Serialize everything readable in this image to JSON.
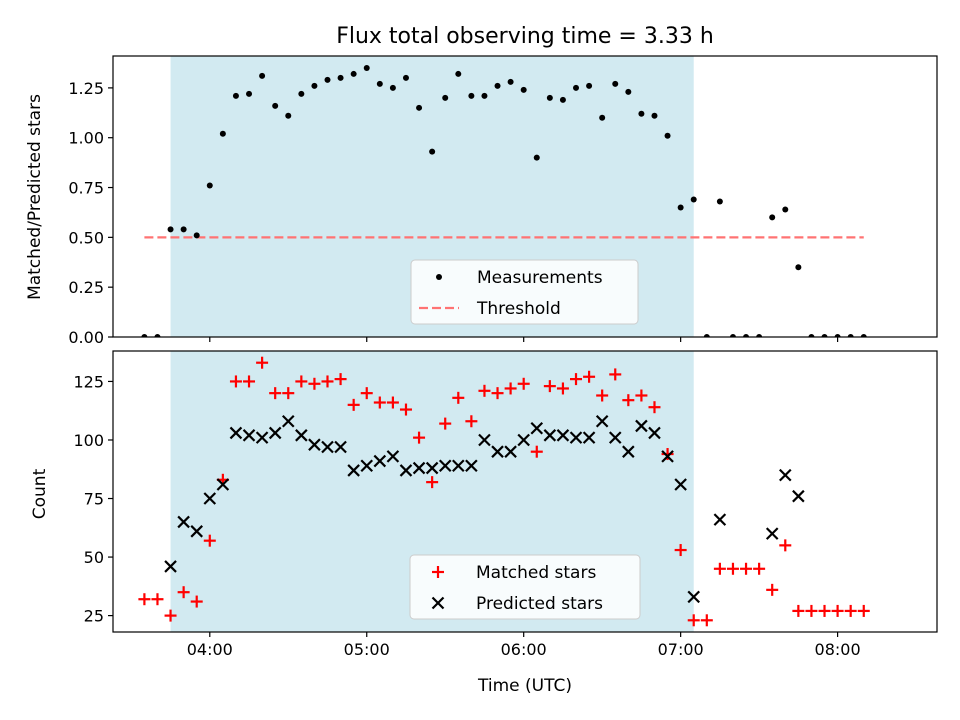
{
  "chart_data": [
    {
      "type": "scatter",
      "title": "Flux total observing time = 3.33 h",
      "xlabel": "",
      "ylabel": "Matched/Predicted stars",
      "ylim": [
        0,
        1.41
      ],
      "y_ticks": [
        "0.00",
        "0.25",
        "0.50",
        "0.75",
        "1.00",
        "1.25"
      ],
      "y_tick_values": [
        0,
        0.25,
        0.5,
        0.75,
        1.0,
        1.25
      ],
      "shaded_region": {
        "x_start": "03:45",
        "x_end": "07:05",
        "color": "#add8e6"
      },
      "threshold": {
        "name": "Threshold",
        "value": 0.5,
        "x_start": "03:35",
        "x_end": "08:10",
        "color": "#ff7373"
      },
      "legend": {
        "placement": "lower-center",
        "entries": [
          "Measurements",
          "Threshold"
        ]
      },
      "series": [
        {
          "name": "Measurements",
          "marker": "dot",
          "color": "#000000",
          "points": [
            [
              "03:35",
              0
            ],
            [
              "03:40",
              0
            ],
            [
              "03:45",
              0.54
            ],
            [
              "03:50",
              0.54
            ],
            [
              "03:55",
              0.51
            ],
            [
              "04:00",
              0.76
            ],
            [
              "04:05",
              1.02
            ],
            [
              "04:10",
              1.21
            ],
            [
              "04:15",
              1.22
            ],
            [
              "04:20",
              1.31
            ],
            [
              "04:25",
              1.16
            ],
            [
              "04:30",
              1.11
            ],
            [
              "04:35",
              1.22
            ],
            [
              "04:40",
              1.26
            ],
            [
              "04:45",
              1.29
            ],
            [
              "04:50",
              1.3
            ],
            [
              "04:55",
              1.32
            ],
            [
              "05:00",
              1.35
            ],
            [
              "05:05",
              1.27
            ],
            [
              "05:10",
              1.25
            ],
            [
              "05:15",
              1.3
            ],
            [
              "05:20",
              1.15
            ],
            [
              "05:25",
              0.93
            ],
            [
              "05:30",
              1.2
            ],
            [
              "05:35",
              1.32
            ],
            [
              "05:40",
              1.21
            ],
            [
              "05:45",
              1.21
            ],
            [
              "05:50",
              1.26
            ],
            [
              "05:55",
              1.28
            ],
            [
              "06:00",
              1.24
            ],
            [
              "06:05",
              0.9
            ],
            [
              "06:10",
              1.2
            ],
            [
              "06:15",
              1.19
            ],
            [
              "06:20",
              1.25
            ],
            [
              "06:25",
              1.26
            ],
            [
              "06:30",
              1.1
            ],
            [
              "06:35",
              1.27
            ],
            [
              "06:40",
              1.23
            ],
            [
              "06:45",
              1.12
            ],
            [
              "06:50",
              1.11
            ],
            [
              "06:55",
              1.01
            ],
            [
              "07:00",
              0.65
            ],
            [
              "07:05",
              0.69
            ],
            [
              "07:10",
              0
            ],
            [
              "07:15",
              0.68
            ],
            [
              "07:20",
              0
            ],
            [
              "07:25",
              0
            ],
            [
              "07:30",
              0
            ],
            [
              "07:35",
              0.6
            ],
            [
              "07:40",
              0.64
            ],
            [
              "07:45",
              0.35
            ],
            [
              "07:50",
              0
            ],
            [
              "07:55",
              0
            ],
            [
              "08:00",
              0
            ],
            [
              "08:05",
              0
            ],
            [
              "08:10",
              0
            ]
          ]
        }
      ]
    },
    {
      "type": "scatter",
      "title": "",
      "xlabel": "Time (UTC)",
      "ylabel": "Count",
      "ylim": [
        18,
        138
      ],
      "xlim": [
        "03:23",
        "08:38"
      ],
      "x_ticks": [
        "04:00",
        "05:00",
        "06:00",
        "07:00",
        "08:00"
      ],
      "y_ticks": [
        "25",
        "50",
        "75",
        "100",
        "125"
      ],
      "y_tick_values": [
        25,
        50,
        75,
        100,
        125
      ],
      "shaded_region": {
        "x_start": "03:45",
        "x_end": "07:05",
        "color": "#add8e6"
      },
      "legend": {
        "placement": "lower-center",
        "entries": [
          "Matched stars",
          "Predicted stars"
        ]
      },
      "series": [
        {
          "name": "Matched stars",
          "marker": "plus",
          "color": "#ff0000",
          "points": [
            [
              "03:35",
              32
            ],
            [
              "03:40",
              32
            ],
            [
              "03:45",
              25
            ],
            [
              "03:50",
              35
            ],
            [
              "03:55",
              31
            ],
            [
              "04:00",
              57
            ],
            [
              "04:05",
              83
            ],
            [
              "04:10",
              125
            ],
            [
              "04:15",
              125
            ],
            [
              "04:20",
              133
            ],
            [
              "04:25",
              120
            ],
            [
              "04:30",
              120
            ],
            [
              "04:35",
              125
            ],
            [
              "04:40",
              124
            ],
            [
              "04:45",
              125
            ],
            [
              "04:50",
              126
            ],
            [
              "04:55",
              115
            ],
            [
              "05:00",
              120
            ],
            [
              "05:05",
              116
            ],
            [
              "05:10",
              116
            ],
            [
              "05:15",
              113
            ],
            [
              "05:20",
              101
            ],
            [
              "05:25",
              82
            ],
            [
              "05:30",
              107
            ],
            [
              "05:35",
              118
            ],
            [
              "05:40",
              108
            ],
            [
              "05:45",
              121
            ],
            [
              "05:50",
              120
            ],
            [
              "05:55",
              122
            ],
            [
              "06:00",
              124
            ],
            [
              "06:05",
              95
            ],
            [
              "06:10",
              123
            ],
            [
              "06:15",
              122
            ],
            [
              "06:20",
              126
            ],
            [
              "06:25",
              127
            ],
            [
              "06:30",
              119
            ],
            [
              "06:35",
              128
            ],
            [
              "06:40",
              117
            ],
            [
              "06:45",
              119
            ],
            [
              "06:50",
              114
            ],
            [
              "06:55",
              94
            ],
            [
              "07:00",
              53
            ],
            [
              "07:05",
              23
            ],
            [
              "07:10",
              23
            ],
            [
              "07:15",
              45
            ],
            [
              "07:20",
              45
            ],
            [
              "07:25",
              45
            ],
            [
              "07:30",
              45
            ],
            [
              "07:35",
              36
            ],
            [
              "07:40",
              55
            ],
            [
              "07:45",
              27
            ],
            [
              "07:50",
              27
            ],
            [
              "07:55",
              27
            ],
            [
              "08:00",
              27
            ],
            [
              "08:05",
              27
            ],
            [
              "08:10",
              27
            ]
          ]
        },
        {
          "name": "Predicted stars",
          "marker": "x",
          "color": "#000000",
          "points": [
            [
              "03:45",
              46
            ],
            [
              "03:50",
              65
            ],
            [
              "03:55",
              61
            ],
            [
              "04:00",
              75
            ],
            [
              "04:05",
              81
            ],
            [
              "04:10",
              103
            ],
            [
              "04:15",
              102
            ],
            [
              "04:20",
              101
            ],
            [
              "04:25",
              103
            ],
            [
              "04:30",
              108
            ],
            [
              "04:35",
              102
            ],
            [
              "04:40",
              98
            ],
            [
              "04:45",
              97
            ],
            [
              "04:50",
              97
            ],
            [
              "04:55",
              87
            ],
            [
              "05:00",
              89
            ],
            [
              "05:05",
              91
            ],
            [
              "05:10",
              93
            ],
            [
              "05:15",
              87
            ],
            [
              "05:20",
              88
            ],
            [
              "05:25",
              88
            ],
            [
              "05:30",
              89
            ],
            [
              "05:35",
              89
            ],
            [
              "05:40",
              89
            ],
            [
              "05:45",
              100
            ],
            [
              "05:50",
              95
            ],
            [
              "05:55",
              95
            ],
            [
              "06:00",
              100
            ],
            [
              "06:05",
              105
            ],
            [
              "06:10",
              102
            ],
            [
              "06:15",
              102
            ],
            [
              "06:20",
              101
            ],
            [
              "06:25",
              101
            ],
            [
              "06:30",
              108
            ],
            [
              "06:35",
              101
            ],
            [
              "06:40",
              95
            ],
            [
              "06:45",
              106
            ],
            [
              "06:50",
              103
            ],
            [
              "06:55",
              93
            ],
            [
              "07:00",
              81
            ],
            [
              "07:05",
              33
            ],
            [
              "07:15",
              66
            ],
            [
              "07:35",
              60
            ],
            [
              "07:40",
              85
            ],
            [
              "07:45",
              76
            ]
          ]
        }
      ]
    }
  ]
}
